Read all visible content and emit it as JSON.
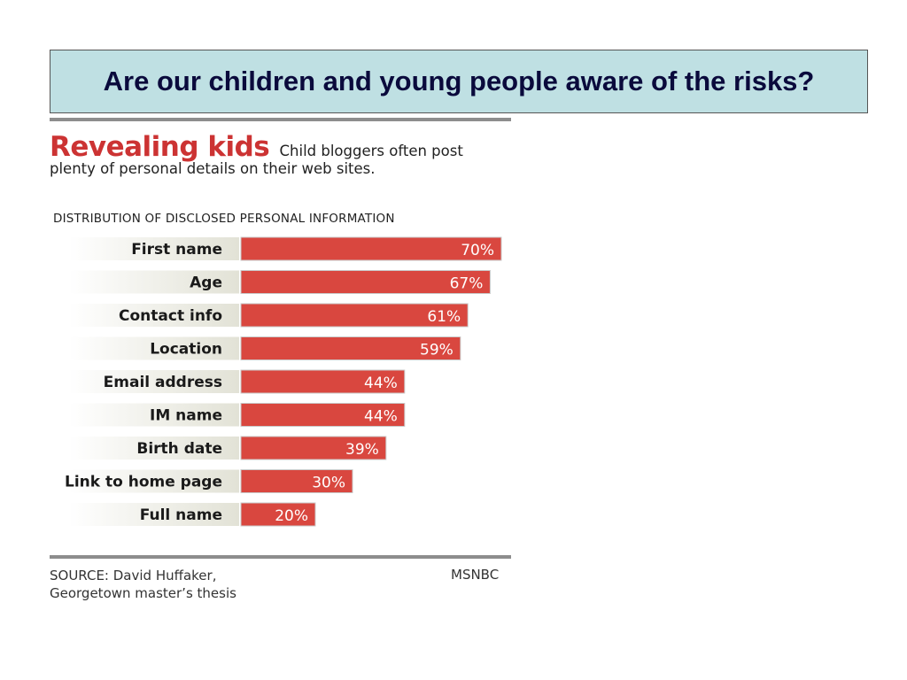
{
  "slide": {
    "title": "Are our children and young people aware of the risks?"
  },
  "graphic": {
    "headline": "Revealing kids",
    "subtitle_line1": "Child bloggers often post",
    "subtitle_line2": "plenty of personal details on their web sites.",
    "source_line1": "SOURCE: David Huffaker,",
    "source_line2": "Georgetown master’s thesis",
    "credit": "MSNBC"
  },
  "colors": {
    "bar": "#d9473f",
    "title_box_bg": "#bfe0e3",
    "headline": "#cc3333"
  },
  "chart_data": {
    "type": "bar",
    "orientation": "horizontal",
    "title": "DISTRIBUTION OF DISCLOSED PERSONAL INFORMATION",
    "categories": [
      "First name",
      "Age",
      "Contact info",
      "Location",
      "Email address",
      "IM name",
      "Birth date",
      "Link to home page",
      "Full name"
    ],
    "values": [
      70,
      67,
      61,
      59,
      44,
      44,
      39,
      30,
      20
    ],
    "value_labels": [
      "70%",
      "67%",
      "61%",
      "59%",
      "44%",
      "44%",
      "39%",
      "30%",
      "20%"
    ],
    "unit": "%",
    "xlim": [
      0,
      100
    ],
    "grid": false,
    "legend": "none"
  }
}
